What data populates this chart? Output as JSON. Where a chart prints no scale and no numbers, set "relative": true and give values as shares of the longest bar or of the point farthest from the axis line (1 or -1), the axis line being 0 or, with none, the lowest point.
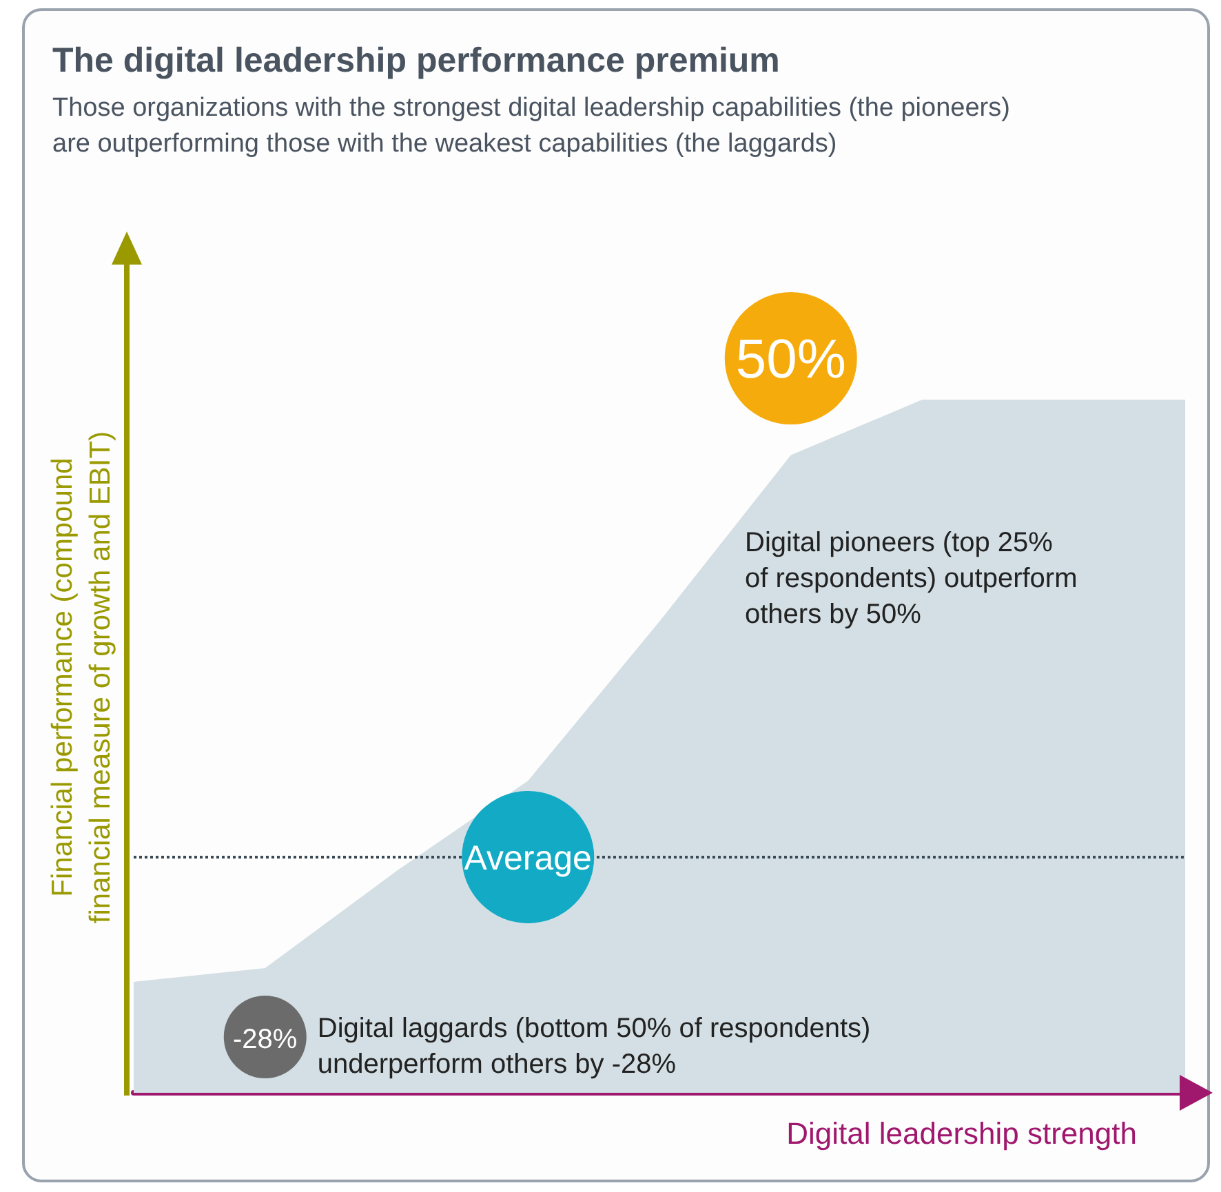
{
  "chart_data": {
    "type": "area",
    "title": "The digital leadership performance premium",
    "subtitle": "Those organizations with the strongest digital leadership capabilities (the pioneers)\nare outperforming those with the weakest capabilities (the laggards)",
    "xlabel": "Digital leadership strength",
    "ylabel": "Financial performance (compound\nfinancial measure of growth and EBIT)",
    "relative": true,
    "categories": [
      null,
      null,
      null,
      null,
      null,
      null,
      null,
      null,
      null
    ],
    "series": [
      {
        "color": "#d3dfe4",
        "values": [
          0.16,
          0.18,
          0.32,
          0.45,
          0.68,
          0.92,
          1,
          1,
          1
        ]
      }
    ],
    "ref_lines": [
      {
        "axis": "y",
        "value": 0.34,
        "label": "Average",
        "line_style": "dotted",
        "color": "#3a4a55"
      }
    ],
    "annotations": [
      "-28%",
      "Digital laggards (bottom 50% of respondents)\nunderperform others  by -28%",
      "50%",
      "Digital pioneers (top 25%\nof respondents) outperform\nothers by 50%"
    ],
    "grid": false
  }
}
